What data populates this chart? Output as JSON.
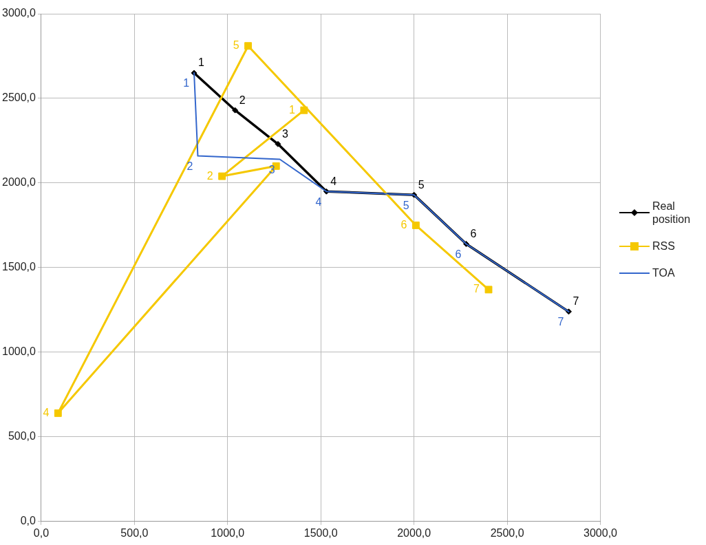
{
  "chart_data": {
    "type": "line",
    "series": [
      {
        "name": "Real position",
        "color": "#000000",
        "marker": "diamond",
        "x": [
          820,
          1040,
          1270,
          1530,
          2000,
          2280,
          2830
        ],
        "values": [
          2650,
          2430,
          2230,
          1950,
          1930,
          1640,
          1240
        ]
      },
      {
        "name": "RSS",
        "color": "#f5c800",
        "marker": "square",
        "x": [
          1410,
          970,
          1260,
          90,
          1110,
          2010,
          2400
        ],
        "values": [
          2430,
          2040,
          2100,
          640,
          2810,
          1750,
          1370
        ]
      },
      {
        "name": "TOA",
        "color": "#3366cc",
        "marker": "none",
        "x": [
          820,
          840,
          1280,
          1530,
          2000,
          2280,
          2830
        ],
        "values": [
          2650,
          2160,
          2140,
          1950,
          1930,
          1640,
          1240
        ]
      }
    ],
    "annotations": [
      {
        "text": "1",
        "x": 820,
        "y": 2650
      },
      {
        "text": "2",
        "x": 1040,
        "y": 2430
      },
      {
        "text": "3",
        "x": 1270,
        "y": 2230
      },
      {
        "text": "4",
        "x": 1530,
        "y": 1950
      },
      {
        "text": "5",
        "x": 2000,
        "y": 1930
      },
      {
        "text": "6",
        "x": 2280,
        "y": 1640
      },
      {
        "text": "7",
        "x": 2830,
        "y": 1240
      },
      {
        "text": "1",
        "x": 1410,
        "y": 2430
      },
      {
        "text": "2",
        "x": 970,
        "y": 2040
      },
      {
        "text": "4",
        "x": 90,
        "y": 640
      },
      {
        "text": "5",
        "x": 1110,
        "y": 2810
      },
      {
        "text": "6",
        "x": 2010,
        "y": 1750
      },
      {
        "text": "7",
        "x": 2400,
        "y": 1370
      },
      {
        "text": "1",
        "x": 820,
        "y": 2650
      },
      {
        "text": "2",
        "x": 840,
        "y": 2160
      },
      {
        "text": "3",
        "x": 1280,
        "y": 2140
      },
      {
        "text": "4",
        "x": 1530,
        "y": 1950
      },
      {
        "text": "5",
        "x": 2000,
        "y": 1930
      },
      {
        "text": "6",
        "x": 2280,
        "y": 1640
      },
      {
        "text": "7",
        "x": 2830,
        "y": 1240
      }
    ],
    "xlim": [
      0,
      3000
    ],
    "ylim": [
      0,
      3000
    ],
    "xticks": [
      {
        "value": 0,
        "label": "0,0"
      },
      {
        "value": 500,
        "label": "500,0"
      },
      {
        "value": 1000,
        "label": "1000,0"
      },
      {
        "value": 1500,
        "label": "1500,0"
      },
      {
        "value": 2000,
        "label": "2000,0"
      },
      {
        "value": 2500,
        "label": "2500,0"
      },
      {
        "value": 3000,
        "label": "3000,0"
      }
    ],
    "yticks": [
      {
        "value": 0,
        "label": "0,0"
      },
      {
        "value": 500,
        "label": "500,0"
      },
      {
        "value": 1000,
        "label": "1000,0"
      },
      {
        "value": 1500,
        "label": "1500,0"
      },
      {
        "value": 2000,
        "label": "2000,0"
      },
      {
        "value": 2500,
        "label": "2500,0"
      },
      {
        "value": 3000,
        "label": "3000,0"
      }
    ],
    "grid": true,
    "legend": "right",
    "line_style": "solid"
  }
}
